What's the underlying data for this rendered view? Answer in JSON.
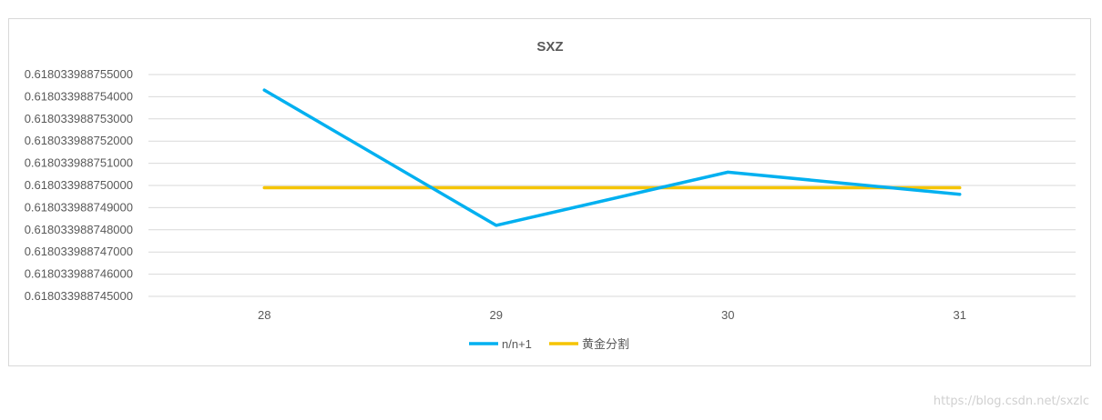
{
  "chart_data": {
    "type": "line",
    "title": "SXZ",
    "categories": [
      "28",
      "29",
      "30",
      "31"
    ],
    "ylim": [
      0.618033988745,
      0.618033988755
    ],
    "yticks": [
      "0.618033988745000",
      "0.618033988746000",
      "0.618033988747000",
      "0.618033988748000",
      "0.618033988749000",
      "0.618033988750000",
      "0.618033988751000",
      "0.618033988752000",
      "0.618033988753000",
      "0.618033988754000",
      "0.618033988755000"
    ],
    "series": [
      {
        "name": "n/n+1",
        "color": "#00b0f0",
        "values": [
          0.6180339887543,
          0.6180339887482,
          0.6180339887506,
          0.6180339887496
        ]
      },
      {
        "name": "黄金分割",
        "color": "#f5c400",
        "values": [
          0.6180339887499,
          0.6180339887499,
          0.6180339887499,
          0.6180339887499
        ]
      }
    ],
    "grid": true,
    "legend": "bottom"
  },
  "watermark": "https://blog.csdn.net/sxzlc"
}
